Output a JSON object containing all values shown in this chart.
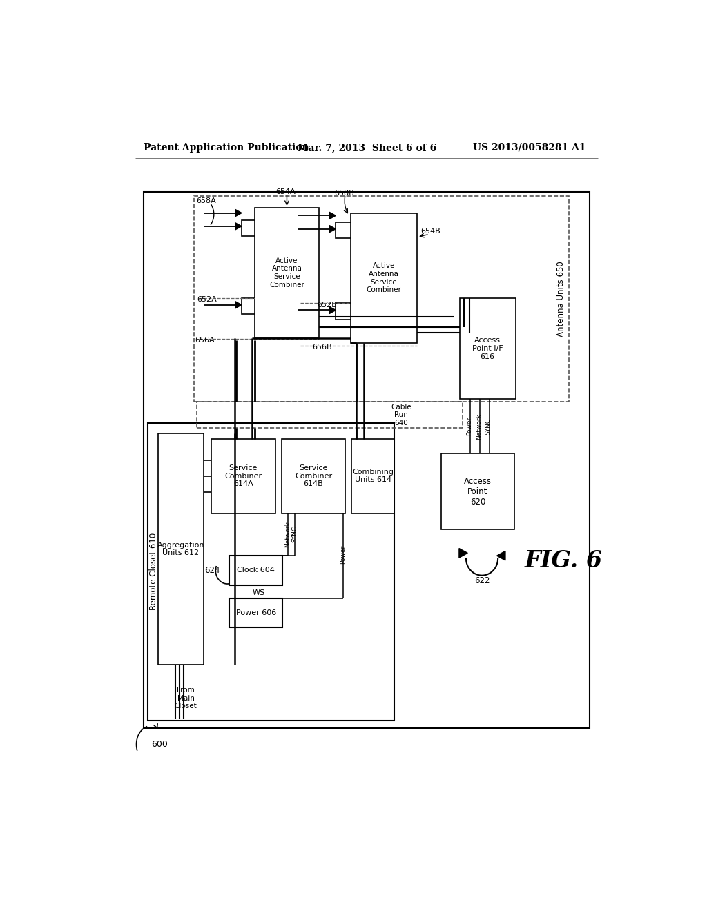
{
  "title_left": "Patent Application Publication",
  "title_mid": "Mar. 7, 2013  Sheet 6 of 6",
  "title_right": "US 2013/0058281 A1",
  "fig_label": "FIG. 6",
  "bg_color": "#ffffff",
  "line_color": "#000000",
  "text_color": "#000000"
}
